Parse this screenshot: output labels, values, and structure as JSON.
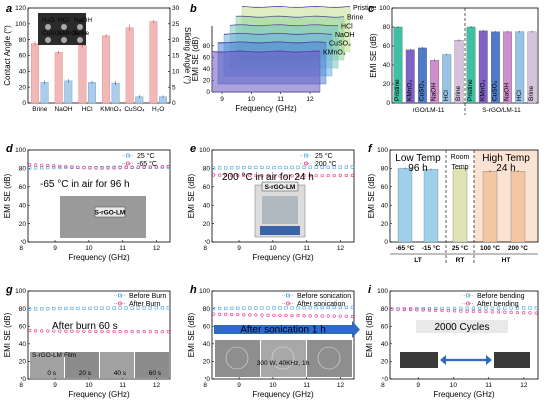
{
  "panel_labels": [
    "a",
    "b",
    "c",
    "d",
    "e",
    "f",
    "g",
    "h",
    "i"
  ],
  "chart_data": [
    {
      "id": "a",
      "type": "bar",
      "categories": [
        "Brine",
        "NaOH",
        "HCl",
        "KMnO₄",
        "CuSO₄",
        "H₂O"
      ],
      "series": [
        {
          "name": "Contact Angle",
          "values": [
            75,
            64,
            73,
            85,
            95,
            103
          ],
          "errors": [
            3,
            2,
            3,
            2,
            4,
            2
          ],
          "color": "#f2b8b8"
        },
        {
          "name": "Sliding Angle",
          "values": [
            6.5,
            7,
            6.5,
            6.3,
            2,
            2
          ],
          "errors": [
            0.6,
            0.6,
            0.5,
            0.6,
            0.5,
            0.4
          ],
          "color": "#a9cdea"
        }
      ],
      "ylabel": "Contact Angle (°)",
      "y2label": "Sliding Angle (°)",
      "ylim": [
        0,
        120
      ],
      "y2lim": [
        0,
        30
      ],
      "yticks": [
        "0",
        "20",
        "40",
        "60",
        "80",
        "100",
        "120"
      ],
      "y2ticks": [
        "0",
        "5",
        "10",
        "15",
        "20",
        "25",
        "30"
      ],
      "inset_labels": [
        "H₂O",
        "HCl",
        "NaOH",
        "CuSO₄",
        "KMnO₄",
        "Brine"
      ]
    },
    {
      "id": "b",
      "type": "line",
      "series": [
        {
          "name": "KMnO₄",
          "value": 70,
          "color": "#6a55c0"
        },
        {
          "name": "CuSO₄",
          "value": 72,
          "color": "#4f7fd4"
        },
        {
          "name": "NaOH",
          "value": 73,
          "color": "#6fb0e0"
        },
        {
          "name": "HCl",
          "value": 74,
          "color": "#76c9c0"
        },
        {
          "name": "Brine",
          "value": 75,
          "color": "#8fd49a"
        },
        {
          "name": "Pristine",
          "value": 78,
          "color": "#c3e08c"
        }
      ],
      "xlabel": "Frequency (GHz)",
      "ylabel": "EMI SE (dB)",
      "xticks": [
        "9",
        "10",
        "11",
        "12"
      ],
      "yticks": [
        "0",
        "20",
        "40",
        "60",
        "80"
      ]
    },
    {
      "id": "c",
      "type": "bar",
      "groups": [
        {
          "name": "rGO/LM-11",
          "categories": [
            "Pristine",
            "KMnO₄",
            "CuSO₄",
            "NaOH",
            "HCl",
            "Brine"
          ],
          "values": [
            80,
            56,
            58,
            45,
            51,
            66
          ],
          "errors": [
            1,
            1,
            1,
            1,
            1,
            1
          ]
        },
        {
          "name": "S-rGO/LM-11",
          "categories": [
            "Pristine",
            "KMnO₄",
            "CuSO₄",
            "NaOH",
            "HCl",
            "Brine"
          ],
          "values": [
            80,
            76,
            75,
            75,
            75,
            75
          ],
          "errors": [
            1,
            1,
            1,
            1,
            1,
            1
          ]
        }
      ],
      "colors": [
        "#3ec1a3",
        "#7f63c6",
        "#4e7cc9",
        "#cf8fcd",
        "#97c4e6",
        "#d7c2de"
      ],
      "ylabel": "EMI SE (dB)",
      "ylim": [
        0,
        100
      ],
      "yticks": [
        "0",
        "20",
        "40",
        "60",
        "80",
        "100"
      ]
    },
    {
      "id": "d",
      "type": "scatter",
      "series": [
        {
          "name": "25 °C",
          "color": "#4aa3df",
          "marker": "square",
          "values": [
            80.5,
            80.6,
            80.7,
            80.8,
            80.9,
            81.0,
            81.1,
            81.1,
            81.0,
            80.9,
            80.8,
            80.8,
            80.9,
            81.0,
            81.1,
            81.2,
            81.2,
            81.3,
            81.3,
            81.2,
            81.2,
            81.3,
            81.4,
            81.4
          ]
        },
        {
          "name": "-65 °C",
          "color": "#e23a8a",
          "marker": "circle",
          "values": [
            84.0,
            83.8,
            83.5,
            83.2,
            82.8,
            82.4,
            82.0,
            81.6,
            81.2,
            80.9,
            80.6,
            80.4,
            80.3,
            80.4,
            80.5,
            80.7,
            80.9,
            81.0,
            81.2,
            81.4,
            81.6,
            81.7,
            81.8,
            82.0
          ]
        }
      ],
      "xlabel": "Frequency (GHz)",
      "ylabel": "EMI SE (dB)",
      "xlim": [
        8.2,
        12.4
      ],
      "ylim": [
        0,
        100
      ],
      "xticks": [
        "8",
        "9",
        "10",
        "11",
        "12"
      ],
      "yticks": [
        "0",
        "20",
        "40",
        "60",
        "80",
        "100"
      ],
      "annotation": "-65 °C  in air for 96 h",
      "inset_label": "S-rGO-LM"
    },
    {
      "id": "e",
      "type": "scatter",
      "series": [
        {
          "name": "25 °C",
          "color": "#4aa3df",
          "marker": "square",
          "values": [
            80.4,
            80.5,
            80.6,
            80.7,
            80.8,
            80.9,
            81.0,
            81.1,
            81.1,
            81.0,
            80.9,
            80.9,
            81.0,
            81.1,
            81.2,
            81.2,
            81.3,
            81.3,
            81.2,
            81.2,
            81.3,
            81.4,
            81.4,
            81.5
          ]
        },
        {
          "name": "200 °C",
          "color": "#e23a8a",
          "marker": "circle",
          "values": [
            72.8,
            72.7,
            72.6,
            72.5,
            72.4,
            72.3,
            72.2,
            72.1,
            72.0,
            71.9,
            71.9,
            71.8,
            71.8,
            71.9,
            71.9,
            72.0,
            72.0,
            72.1,
            72.1,
            72.2,
            72.2,
            72.3,
            72.3,
            72.4
          ]
        }
      ],
      "xlabel": "Frequency (GHz)",
      "ylabel": "EMI SE (dB)",
      "xlim": [
        8.2,
        12.4
      ],
      "ylim": [
        0,
        100
      ],
      "xticks": [
        "8",
        "9",
        "10",
        "11",
        "12"
      ],
      "yticks": [
        "0",
        "20",
        "40",
        "60",
        "80",
        "100"
      ],
      "annotation": "200 °C  in air for 24 h",
      "inset_label": "S-rGO-LM"
    },
    {
      "id": "f",
      "type": "bar",
      "categories": [
        "-65 °C",
        "-15 °C",
        "25 °C",
        "100 °C",
        "200 °C"
      ],
      "values": [
        80,
        79,
        80,
        77,
        77
      ],
      "errors": [
        1,
        1,
        1,
        1,
        1
      ],
      "colors": [
        "#9fd0ea",
        "#9fd0ea",
        "#dfe3b3",
        "#f3c6a4",
        "#f3c6a4"
      ],
      "groups": [
        "LT",
        "RT",
        "HT"
      ],
      "section_labels": [
        {
          "line1": "Low Temp",
          "line2": "96 h"
        },
        {
          "line1": "Room",
          "line2": "Temp"
        },
        {
          "line1": "High Temp",
          "line2": "24 h"
        }
      ],
      "ylabel": "EMI SE (dB)",
      "ylim": [
        0,
        100
      ],
      "yticks": [
        "0",
        "20",
        "40",
        "60",
        "80",
        "100"
      ]
    },
    {
      "id": "g",
      "type": "scatter",
      "series": [
        {
          "name": "Before Burn",
          "color": "#4aa3df",
          "marker": "square",
          "values": [
            79.6,
            79.7,
            79.8,
            79.9,
            80.0,
            80.1,
            80.1,
            80.2,
            80.2,
            80.3,
            80.3,
            80.4,
            80.4,
            80.5,
            80.5,
            80.6,
            80.6,
            80.7,
            80.7,
            80.8,
            80.8,
            80.9,
            80.9,
            81.0
          ]
        },
        {
          "name": "After Burn",
          "color": "#e23a8a",
          "marker": "circle",
          "values": [
            55.0,
            54.8,
            54.7,
            54.6,
            54.5,
            54.4,
            54.3,
            54.3,
            54.2,
            54.2,
            54.1,
            54.1,
            54.0,
            54.0,
            54.0,
            53.9,
            53.9,
            53.9,
            53.8,
            53.8,
            53.8,
            53.7,
            53.7,
            53.7
          ]
        }
      ],
      "xlabel": "Frequency (GHz)",
      "ylabel": "EMI SE (dB)",
      "xlim": [
        8.2,
        12.4
      ],
      "ylim": [
        0,
        100
      ],
      "xticks": [
        "8",
        "9",
        "10",
        "11",
        "12"
      ],
      "yticks": [
        "0",
        "20",
        "40",
        "60",
        "80",
        "100"
      ],
      "annotation": "After burn 60 s",
      "inset_frames": [
        "0 s",
        "20 s",
        "40 s",
        "60 s"
      ],
      "inset_label": "S-rGO-LM Film"
    },
    {
      "id": "h",
      "type": "scatter",
      "series": [
        {
          "name": "Before sonication",
          "color": "#4aa3df",
          "marker": "square",
          "values": [
            80.0,
            80.1,
            80.2,
            80.3,
            80.4,
            80.5,
            80.6,
            80.6,
            80.7,
            80.7,
            80.8,
            80.8,
            80.9,
            80.9,
            81.0,
            81.0,
            81.1,
            81.1,
            81.2,
            81.2,
            81.3,
            81.3,
            81.4,
            81.4
          ]
        },
        {
          "name": "After sonication",
          "color": "#e23a8a",
          "marker": "circle",
          "values": [
            73.8,
            73.6,
            73.5,
            73.3,
            73.2,
            73.0,
            72.9,
            72.8,
            72.6,
            72.5,
            72.4,
            72.3,
            72.2,
            72.1,
            72.0,
            71.9,
            71.8,
            71.7,
            71.6,
            71.6,
            71.5,
            71.4,
            71.3,
            71.2
          ]
        }
      ],
      "xlabel": "Frequency (GHz)",
      "ylabel": "EMI SE (dB)",
      "xlim": [
        8.2,
        12.4
      ],
      "ylim": [
        0,
        100
      ],
      "xticks": [
        "8",
        "9",
        "10",
        "11",
        "12"
      ],
      "yticks": [
        "0",
        "20",
        "40",
        "60",
        "80",
        "100"
      ],
      "annotation": "After sonication 1 h",
      "inset_label": "300 W, 40KHz, 1h"
    },
    {
      "id": "i",
      "type": "scatter",
      "series": [
        {
          "name": "Before bending",
          "color": "#4aa3df",
          "marker": "square",
          "values": [
            79.6,
            79.7,
            79.8,
            79.8,
            79.9,
            80.0,
            80.0,
            80.1,
            80.1,
            80.2,
            80.2,
            80.3,
            80.3,
            80.4,
            80.4,
            80.5,
            80.5,
            80.6,
            80.6,
            80.7,
            80.7,
            80.8,
            80.8,
            80.9
          ]
        },
        {
          "name": "After bending",
          "color": "#e23a8a",
          "marker": "circle",
          "values": [
            79.4,
            79.2,
            79.0,
            78.8,
            78.6,
            78.4,
            78.2,
            78.0,
            77.8,
            77.6,
            77.4,
            77.2,
            77.0,
            76.9,
            76.7,
            76.5,
            76.3,
            76.1,
            75.9,
            75.7,
            75.5,
            75.3,
            75.1,
            74.9
          ]
        }
      ],
      "xlabel": "Frequency (GHz)",
      "ylabel": "EMI SE (dB)",
      "xlim": [
        8.2,
        12.4
      ],
      "ylim": [
        0,
        100
      ],
      "xticks": [
        "8",
        "9",
        "10",
        "11",
        "12"
      ],
      "yticks": [
        "0",
        "20",
        "40",
        "60",
        "80",
        "100"
      ],
      "annotation": "2000 Cycles"
    }
  ]
}
